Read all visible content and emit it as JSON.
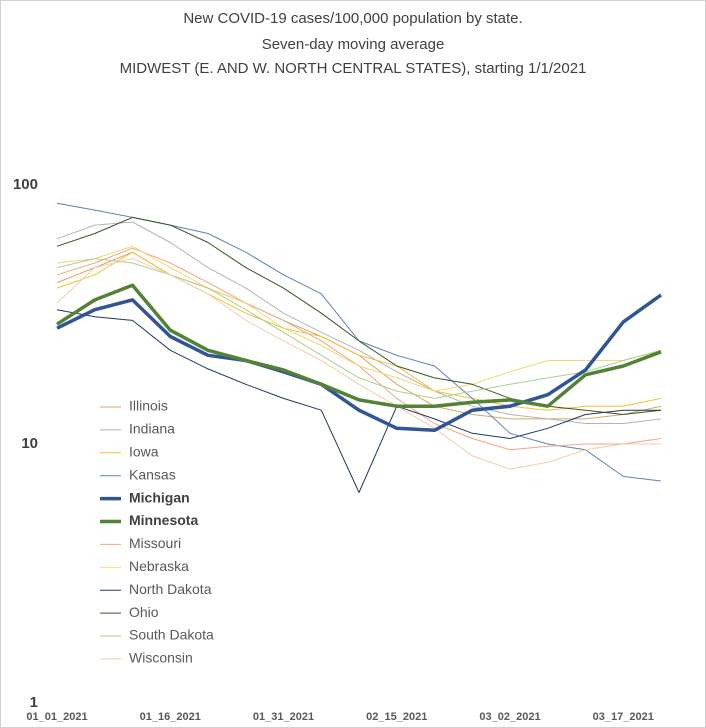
{
  "chart_data": {
    "type": "line",
    "title": [
      "New COVID-19 cases/100,000 population by state.",
      "Seven-day moving average",
      "MIDWEST (E. AND W. NORTH CENTRAL STATES), starting 1/1/2021"
    ],
    "categories": [
      "01_01_2021",
      null,
      null,
      "01_16_2021",
      null,
      null,
      "01_31_2021",
      null,
      null,
      "02_15_2021",
      null,
      null,
      "03_02_2021",
      null,
      null,
      "03_17_2021",
      null
    ],
    "ylim": [
      1,
      100
    ],
    "yticks": [
      1,
      10,
      100
    ],
    "log": true,
    "grid": false,
    "series": [
      {
        "name": "Illinois",
        "color": "#dfa468",
        "width": 1,
        "values": [
          42,
          48,
          55,
          45,
          40,
          35,
          30,
          26,
          22,
          17,
          14,
          13,
          12.5,
          12.5,
          12.5,
          13,
          14
        ]
      },
      {
        "name": "Indiana",
        "color": "#b4b4b4",
        "width": 1,
        "values": [
          62,
          70,
          72,
          60,
          48,
          40,
          32,
          27,
          23,
          19,
          16,
          14,
          13,
          12.5,
          12,
          12,
          12.5
        ]
      },
      {
        "name": "Iowa",
        "color": "#f2c234",
        "width": 1,
        "values": [
          40,
          45,
          55,
          45,
          38,
          32,
          28,
          26,
          22,
          20,
          16,
          15,
          14,
          13.5,
          14,
          14,
          15
        ]
      },
      {
        "name": "Kansas",
        "color": "#5b83b9",
        "width": 1,
        "values": [
          85,
          80,
          75,
          70,
          65,
          55,
          45,
          38,
          25,
          22,
          20,
          15,
          11,
          10,
          9.5,
          7.5,
          7.2
        ]
      },
      {
        "name": "Michigan",
        "color": "#2f5597",
        "width": 3.5,
        "values": [
          28,
          33,
          36,
          26,
          22,
          21,
          19,
          17,
          13.5,
          11.5,
          11.3,
          13.5,
          14,
          15.5,
          19.3,
          29.6,
          37.6
        ]
      },
      {
        "name": "Minnesota",
        "color": "#548235",
        "width": 3.5,
        "values": [
          29,
          36,
          41,
          27.5,
          23,
          21,
          19.3,
          17,
          14.8,
          14,
          14,
          14.5,
          14.8,
          14,
          18.5,
          20,
          22.7
        ]
      },
      {
        "name": "Missouri",
        "color": "#f4a582",
        "width": 1,
        "values": [
          45,
          50,
          57,
          50,
          42,
          35,
          30,
          25,
          20,
          15,
          12,
          10.5,
          9.5,
          9.8,
          10,
          10,
          10.5
        ]
      },
      {
        "name": "Nebraska",
        "color": "#f5d76e",
        "width": 1,
        "values": [
          50,
          52,
          58,
          48,
          40,
          35,
          28,
          24,
          20,
          18,
          16,
          17,
          19,
          21,
          21,
          21,
          23
        ]
      },
      {
        "name": "North Dakota",
        "color": "#1f3864",
        "width": 1,
        "values": [
          33,
          31,
          30,
          23,
          19.5,
          17,
          15,
          13.5,
          6.5,
          14,
          12.5,
          11,
          10.5,
          11.5,
          13,
          13.5,
          13.5
        ]
      },
      {
        "name": "Ohio",
        "color": "#375623",
        "width": 1,
        "values": [
          58,
          65,
          75,
          70,
          60,
          48,
          40,
          32,
          25,
          20,
          18,
          17,
          15,
          14,
          13.5,
          13,
          13.5
        ]
      },
      {
        "name": "South Dakota",
        "color": "#a9d18e",
        "width": 1,
        "values": [
          48,
          52,
          50,
          45,
          40,
          33,
          27,
          22,
          18,
          16,
          15,
          16,
          17,
          18,
          19,
          21,
          23
        ]
      },
      {
        "name": "Wisconsin",
        "color": "#f8cbad",
        "width": 1,
        "values": [
          35,
          48,
          52,
          45,
          38,
          30,
          25,
          21,
          17,
          14,
          11.5,
          9,
          8,
          8.5,
          9.5,
          10,
          10
        ]
      }
    ]
  }
}
